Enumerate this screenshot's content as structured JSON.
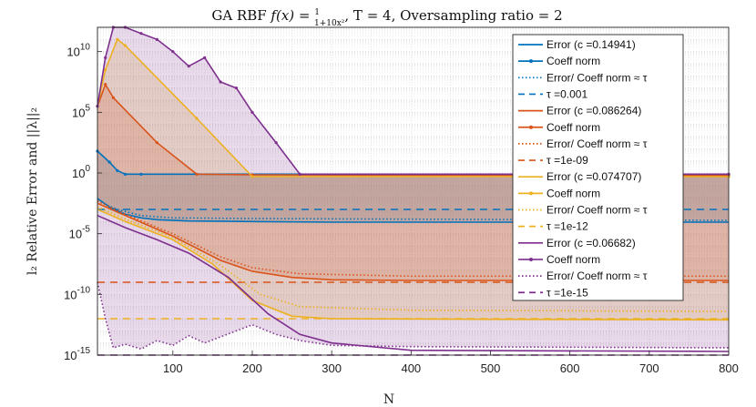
{
  "chart_data": {
    "type": "line",
    "title": "GA RBF f(x) = 1/(1+10x²), T = 4, Oversampling ratio = 2",
    "title_parts": {
      "prefix": "GA RBF ",
      "fx": "f(x) = ",
      "num": "1",
      "den": "1+10x²",
      "suffix": ", T = 4, Oversampling ratio = 2"
    },
    "xlabel": "N",
    "ylabel": "l₂ Relative Error and ||λ||₂",
    "xlim": [
      5,
      800
    ],
    "ylim_log10": [
      -15,
      12
    ],
    "yscale": "log",
    "grid": true,
    "legend_placement": "top-right",
    "x_ticks": [
      100,
      200,
      300,
      400,
      500,
      600,
      700,
      800
    ],
    "y_ticks": [
      {
        "exp": 10,
        "label_base": "10",
        "label_exp": "10"
      },
      {
        "exp": 5,
        "label_base": "10",
        "label_exp": "5"
      },
      {
        "exp": 0,
        "label_base": "10",
        "label_exp": "0"
      },
      {
        "exp": -5,
        "label_base": "10",
        "label_exp": "-5"
      },
      {
        "exp": -10,
        "label_base": "10",
        "label_exp": "-10"
      },
      {
        "exp": -15,
        "label_base": "10",
        "label_exp": "-15"
      }
    ],
    "groups": [
      {
        "color": "#0072BD",
        "fill": "#0072BD",
        "legend": {
          "error": "Error (c =0.14941)",
          "coeff": "Coeff norm",
          "ratio": "Error/ Coeff norm ≈ τ",
          "tau": "τ =0.001"
        },
        "tau_log10": -3,
        "error_log10": [
          [
            5,
            -2.1
          ],
          [
            20,
            -2.8
          ],
          [
            40,
            -3.4
          ],
          [
            60,
            -3.7
          ],
          [
            80,
            -3.85
          ],
          [
            120,
            -3.95
          ],
          [
            200,
            -4.0
          ],
          [
            300,
            -4.05
          ],
          [
            800,
            -4.05
          ]
        ],
        "coeff_log10": [
          [
            5,
            1.8
          ],
          [
            20,
            0.9
          ],
          [
            30,
            0.2
          ],
          [
            40,
            -0.1
          ],
          [
            60,
            -0.1
          ],
          [
            800,
            -0.1
          ]
        ],
        "ratio_log10": [
          [
            5,
            -2.3
          ],
          [
            30,
            -3.0
          ],
          [
            60,
            -3.5
          ],
          [
            100,
            -3.7
          ],
          [
            200,
            -3.75
          ],
          [
            400,
            -3.8
          ],
          [
            800,
            -3.9
          ]
        ]
      },
      {
        "color": "#D95319",
        "fill": "#D95319",
        "legend": {
          "error": "Error (c =0.086264)",
          "coeff": "Coeff norm",
          "ratio": "Error/ Coeff norm ≈ τ",
          "tau": "τ =1e-09"
        },
        "tau_log10": -9,
        "error_log10": [
          [
            5,
            -2.5
          ],
          [
            40,
            -3.5
          ],
          [
            100,
            -5.2
          ],
          [
            160,
            -7.2
          ],
          [
            200,
            -8.1
          ],
          [
            250,
            -8.6
          ],
          [
            300,
            -8.8
          ],
          [
            400,
            -8.85
          ],
          [
            800,
            -8.85
          ]
        ],
        "coeff_log10": [
          [
            5,
            5.5
          ],
          [
            15,
            7.3
          ],
          [
            25,
            6.2
          ],
          [
            80,
            2.5
          ],
          [
            130,
            -0.1
          ],
          [
            200,
            -0.15
          ],
          [
            800,
            -0.2
          ]
        ],
        "ratio_log10": [
          [
            5,
            -2.3
          ],
          [
            40,
            -3.4
          ],
          [
            100,
            -5.0
          ],
          [
            160,
            -6.9
          ],
          [
            200,
            -7.8
          ],
          [
            260,
            -8.3
          ],
          [
            400,
            -8.5
          ],
          [
            800,
            -8.5
          ]
        ]
      },
      {
        "color": "#EDB120",
        "fill": "#EDB120",
        "legend": {
          "error": "Error (c =0.074707)",
          "coeff": "Coeff norm",
          "ratio": "Error/ Coeff norm ≈ τ",
          "tau": "τ =1e-12"
        },
        "tau_log10": -12,
        "error_log10": [
          [
            5,
            -3.0
          ],
          [
            40,
            -4.0
          ],
          [
            100,
            -5.5
          ],
          [
            150,
            -7.5
          ],
          [
            200,
            -10.5
          ],
          [
            250,
            -11.8
          ],
          [
            300,
            -12.0
          ],
          [
            500,
            -12.05
          ],
          [
            800,
            -12.1
          ]
        ],
        "coeff_log10": [
          [
            5,
            5.5
          ],
          [
            15,
            8.5
          ],
          [
            30,
            11.0
          ],
          [
            40,
            10.5
          ],
          [
            130,
            4.5
          ],
          [
            200,
            -0.3
          ],
          [
            800,
            -0.3
          ]
        ],
        "ratio_log10": [
          [
            5,
            -2.8
          ],
          [
            40,
            -3.8
          ],
          [
            100,
            -5.3
          ],
          [
            160,
            -7.6
          ],
          [
            210,
            -10.0
          ],
          [
            260,
            -11.0
          ],
          [
            400,
            -11.3
          ],
          [
            800,
            -11.4
          ]
        ]
      },
      {
        "color": "#7E2F8E",
        "fill": "#7E2F8E",
        "legend": {
          "error": "Error (c =0.06682)",
          "coeff": "Coeff norm",
          "ratio": "Error/ Coeff norm ≈ τ",
          "tau": "τ =1e-15"
        },
        "tau_log10": -15,
        "error_log10": [
          [
            5,
            -3.5
          ],
          [
            40,
            -4.5
          ],
          [
            80,
            -5.5
          ],
          [
            120,
            -6.6
          ],
          [
            170,
            -8.6
          ],
          [
            220,
            -11.6
          ],
          [
            260,
            -13.3
          ],
          [
            300,
            -14.0
          ],
          [
            400,
            -14.6
          ],
          [
            800,
            -14.7
          ]
        ],
        "coeff_log10": [
          [
            5,
            5.5
          ],
          [
            15,
            9.5
          ],
          [
            25,
            12.0
          ],
          [
            40,
            12.0
          ],
          [
            60,
            11.5
          ],
          [
            80,
            11.0
          ],
          [
            100,
            10.0
          ],
          [
            120,
            8.8
          ],
          [
            140,
            9.5
          ],
          [
            160,
            7.5
          ],
          [
            180,
            7.0
          ],
          [
            200,
            5.0
          ],
          [
            230,
            2.5
          ],
          [
            260,
            -0.1
          ],
          [
            800,
            -0.1
          ]
        ],
        "ratio_log10": [
          [
            5,
            -9.0
          ],
          [
            15,
            -12.0
          ],
          [
            25,
            -14.4
          ],
          [
            40,
            -14.1
          ],
          [
            60,
            -14.5
          ],
          [
            80,
            -13.8
          ],
          [
            100,
            -14.2
          ],
          [
            120,
            -13.4
          ],
          [
            140,
            -14.0
          ],
          [
            160,
            -13.5
          ],
          [
            200,
            -12.5
          ],
          [
            230,
            -13.3
          ],
          [
            260,
            -13.8
          ],
          [
            300,
            -14.2
          ],
          [
            400,
            -14.3
          ],
          [
            800,
            -14.4
          ]
        ]
      }
    ]
  }
}
